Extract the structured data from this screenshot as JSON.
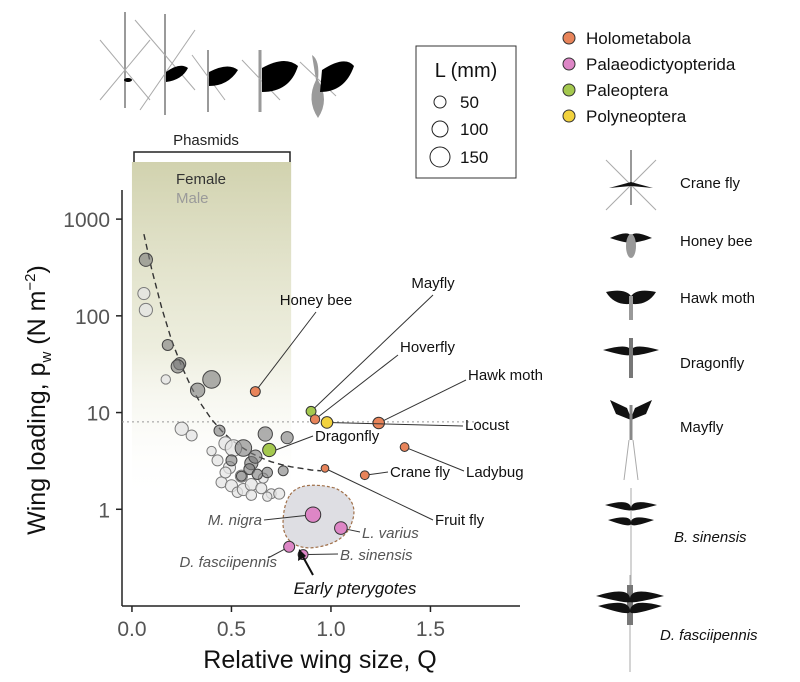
{
  "chart_data": {
    "type": "scatter",
    "xlabel": "Relative wing size, Q",
    "ylabel": "Wing loading, p",
    "ylabel_sub": "w",
    "ylabel_units_prefix": " (N m",
    "ylabel_units_sup": "−2",
    "ylabel_units_suffix": ")",
    "x_ticks": [
      "0.0",
      "0.5",
      "1.0",
      "1.5"
    ],
    "x_tick_values": [
      0,
      0.5,
      1.0,
      1.5
    ],
    "y_ticks": [
      "1",
      "10",
      "100",
      "1000"
    ],
    "y_tick_values": [
      1,
      10,
      100,
      1000
    ],
    "y_scale": "log",
    "xlim": [
      -0.05,
      1.95
    ],
    "ylim": [
      0.1,
      2000
    ],
    "reference_line_y": 8,
    "shaded_region": {
      "x_range": [
        0.0,
        0.8
      ],
      "label": "Phasmids",
      "legend_female": "Female",
      "legend_male": "Male"
    },
    "size_legend": {
      "title": "L (mm)",
      "values": [
        "50",
        "100",
        "150"
      ]
    },
    "group_legend": [
      {
        "name": "Holometabola",
        "color": "#e8845a"
      },
      {
        "name": "Palaeodictyopterida",
        "color": "#dd86c6"
      },
      {
        "name": "Paleoptera",
        "color": "#a4c84e"
      },
      {
        "name": "Polyneoptera",
        "color": "#f2d23d"
      }
    ],
    "phasmid_trend": {
      "x": [
        0.06,
        0.1,
        0.15,
        0.2,
        0.25,
        0.3,
        0.35,
        0.4,
        0.45,
        0.5,
        0.55,
        0.6,
        0.65,
        0.7,
        0.75,
        0.8,
        0.85,
        0.9,
        0.95
      ],
      "y": [
        700,
        300,
        120,
        55,
        30,
        18,
        12,
        8.5,
        6.5,
        5.2,
        4.4,
        3.8,
        3.4,
        3.1,
        2.9,
        2.75,
        2.65,
        2.55,
        2.5
      ]
    },
    "phasmids_female": [
      {
        "x": 0.07,
        "y": 380,
        "L": 80
      },
      {
        "x": 0.18,
        "y": 50,
        "L": 60
      },
      {
        "x": 0.24,
        "y": 32,
        "L": 70
      },
      {
        "x": 0.33,
        "y": 17,
        "L": 90
      },
      {
        "x": 0.4,
        "y": 22,
        "L": 120
      },
      {
        "x": 0.44,
        "y": 6.5,
        "L": 60
      },
      {
        "x": 0.5,
        "y": 3.2,
        "L": 60
      },
      {
        "x": 0.56,
        "y": 4.3,
        "L": 110
      },
      {
        "x": 0.6,
        "y": 3.0,
        "L": 80
      },
      {
        "x": 0.62,
        "y": 3.5,
        "L": 80
      },
      {
        "x": 0.67,
        "y": 6.0,
        "L": 90
      },
      {
        "x": 0.78,
        "y": 5.5,
        "L": 70
      },
      {
        "x": 0.68,
        "y": 2.4,
        "L": 55
      },
      {
        "x": 0.59,
        "y": 2.6,
        "L": 60
      },
      {
        "x": 0.55,
        "y": 2.2,
        "L": 50
      },
      {
        "x": 0.76,
        "y": 2.5,
        "L": 50
      },
      {
        "x": 0.63,
        "y": 2.3,
        "L": 55
      },
      {
        "x": 0.23,
        "y": 30,
        "L": 80
      }
    ],
    "phasmids_male": [
      {
        "x": 0.06,
        "y": 170,
        "L": 70
      },
      {
        "x": 0.07,
        "y": 115,
        "L": 80
      },
      {
        "x": 0.17,
        "y": 22,
        "L": 45
      },
      {
        "x": 0.25,
        "y": 6.8,
        "L": 80
      },
      {
        "x": 0.3,
        "y": 5.8,
        "L": 60
      },
      {
        "x": 0.4,
        "y": 4.0,
        "L": 45
      },
      {
        "x": 0.43,
        "y": 3.2,
        "L": 60
      },
      {
        "x": 0.47,
        "y": 4.8,
        "L": 80
      },
      {
        "x": 0.49,
        "y": 2.7,
        "L": 70
      },
      {
        "x": 0.51,
        "y": 4.3,
        "L": 110
      },
      {
        "x": 0.55,
        "y": 2.2,
        "L": 70
      },
      {
        "x": 0.45,
        "y": 1.9,
        "L": 60
      },
      {
        "x": 0.5,
        "y": 1.75,
        "L": 70
      },
      {
        "x": 0.53,
        "y": 1.5,
        "L": 55
      },
      {
        "x": 0.56,
        "y": 1.6,
        "L": 70
      },
      {
        "x": 0.6,
        "y": 1.8,
        "L": 70
      },
      {
        "x": 0.65,
        "y": 1.65,
        "L": 60
      },
      {
        "x": 0.66,
        "y": 2.1,
        "L": 50
      },
      {
        "x": 0.7,
        "y": 1.45,
        "L": 50
      },
      {
        "x": 0.74,
        "y": 1.45,
        "L": 60
      },
      {
        "x": 0.47,
        "y": 2.4,
        "L": 60
      },
      {
        "x": 0.6,
        "y": 1.4,
        "L": 55
      },
      {
        "x": 0.68,
        "y": 1.35,
        "L": 45
      }
    ],
    "insects": [
      {
        "name": "Honey bee",
        "group": "Holometabola",
        "x": 0.62,
        "y": 16.5,
        "L": 50
      },
      {
        "name": "Mayfly",
        "group": "Paleoptera",
        "x": 0.9,
        "y": 10.3,
        "L": 50
      },
      {
        "name": "Hoverfly",
        "group": "Holometabola",
        "x": 0.92,
        "y": 8.5,
        "L": 45
      },
      {
        "name": "Hawk moth",
        "group": "Holometabola",
        "x": 1.24,
        "y": 7.8,
        "L": 65
      },
      {
        "name": "Locust",
        "group": "Polyneoptera",
        "x": 0.98,
        "y": 7.9,
        "L": 65
      },
      {
        "name": "Ladybug",
        "group": "Holometabola",
        "x": 1.37,
        "y": 4.4,
        "L": 40
      },
      {
        "name": "Crane fly",
        "group": "Holometabola",
        "x": 1.17,
        "y": 2.25,
        "L": 40
      },
      {
        "name": "Fruit fly",
        "group": "Holometabola",
        "x": 0.97,
        "y": 2.65,
        "L": 30
      },
      {
        "name": "Dragonfly",
        "group": "Paleoptera",
        "x": 0.69,
        "y": 4.1,
        "L": 80
      },
      {
        "name": "M. nigra",
        "group": "Palaeodictyopterida",
        "x": 0.91,
        "y": 0.88,
        "L": 100
      },
      {
        "name": "L. varius",
        "group": "Palaeodictyopterida",
        "x": 1.05,
        "y": 0.64,
        "L": 75
      },
      {
        "name": "B. sinensis",
        "group": "Palaeodictyopterida",
        "x": 0.86,
        "y": 0.34,
        "L": 50
      },
      {
        "name": "D. fasciipennis",
        "group": "Palaeodictyopterida",
        "x": 0.79,
        "y": 0.41,
        "L": 60
      }
    ],
    "early_pterygotes_label": "Early pterygotes",
    "silhouette_labels": [
      "Crane fly",
      "Honey bee",
      "Hawk moth",
      "Dragonfly",
      "Mayfly",
      "B. sinensis",
      "D. fasciipennis"
    ]
  }
}
